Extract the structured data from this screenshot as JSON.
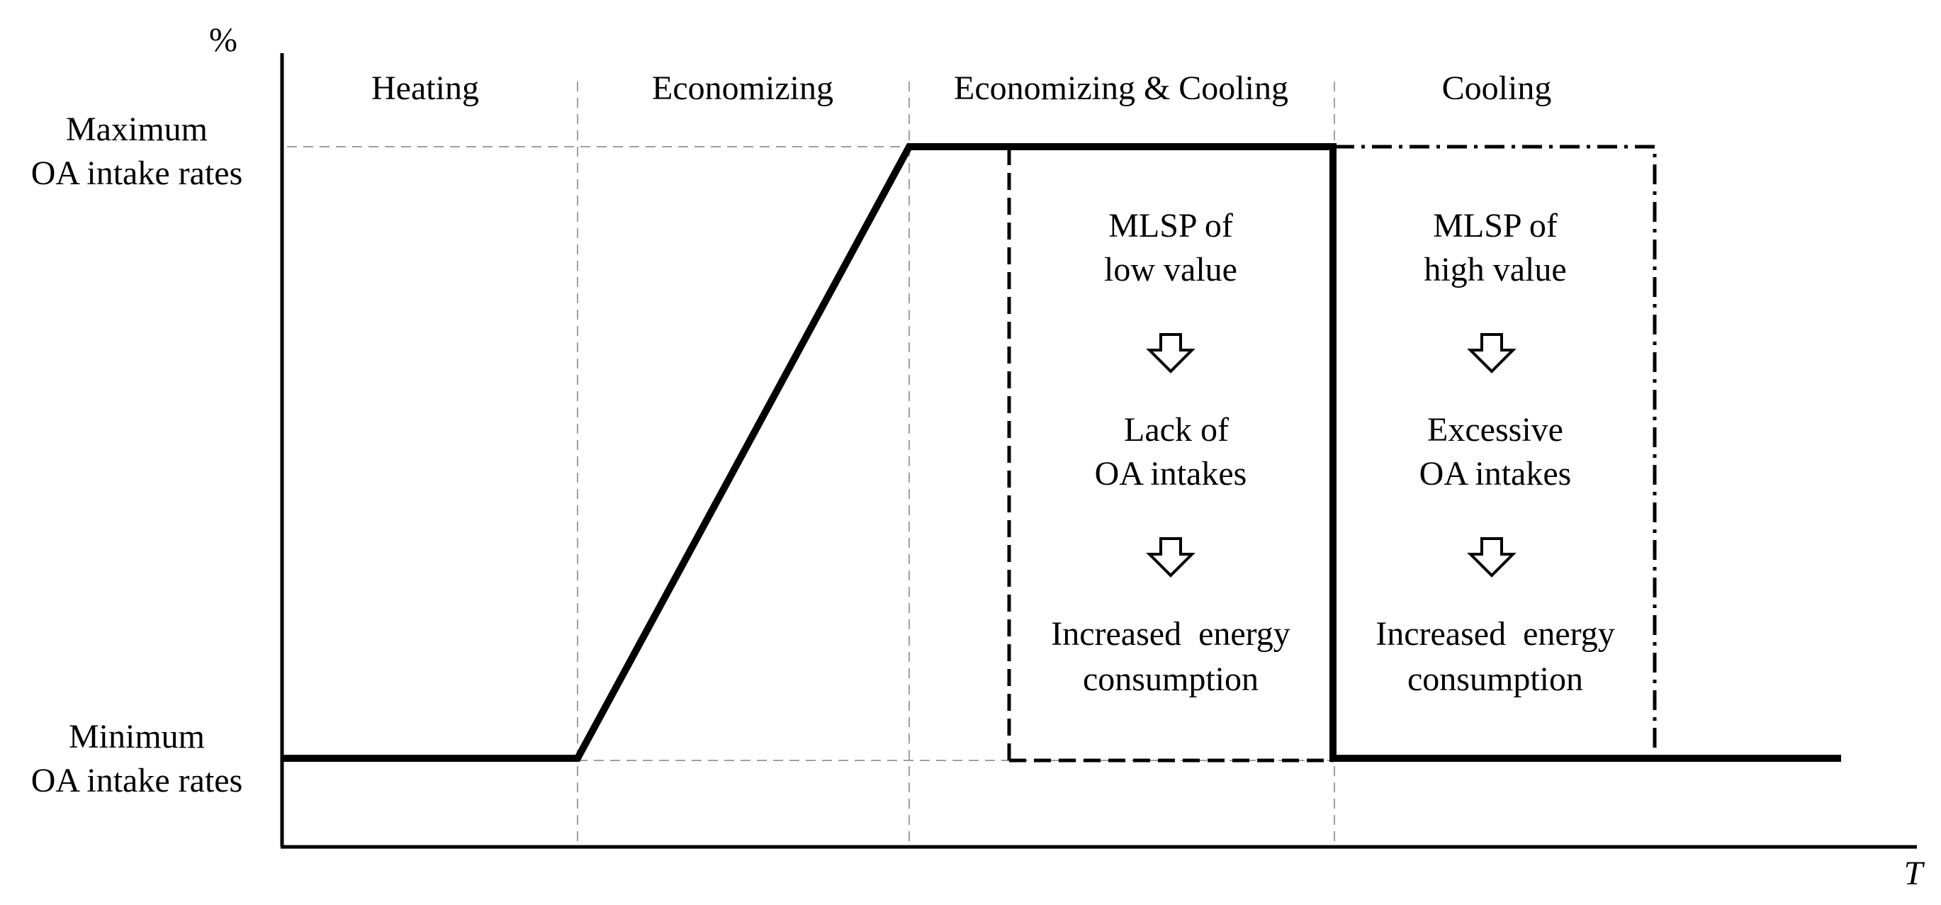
{
  "y_axis": {
    "unit": "%",
    "max_label": [
      "Maximum",
      "OA intake rates"
    ],
    "min_label": [
      "Minimum",
      "OA intake rates"
    ]
  },
  "x_axis": {
    "label": "T"
  },
  "regions": [
    {
      "label": "Heating"
    },
    {
      "label": "Economizing"
    },
    {
      "label": "Economizing & Cooling"
    },
    {
      "label": "Cooling"
    }
  ],
  "low_mlsp": {
    "cause": [
      "MLSP of",
      "low value"
    ],
    "effect": [
      "Lack of",
      "OA intakes"
    ],
    "result": [
      "Increased  energy",
      "consumption"
    ]
  },
  "high_mlsp": {
    "cause": [
      "MLSP of",
      "high value"
    ],
    "effect": [
      "Excessive",
      "OA intakes"
    ],
    "result": [
      "Increased  energy",
      "consumption"
    ]
  },
  "colors": {
    "line": "#000000",
    "guide": "#a0a0a0",
    "background": "#ffffff"
  }
}
